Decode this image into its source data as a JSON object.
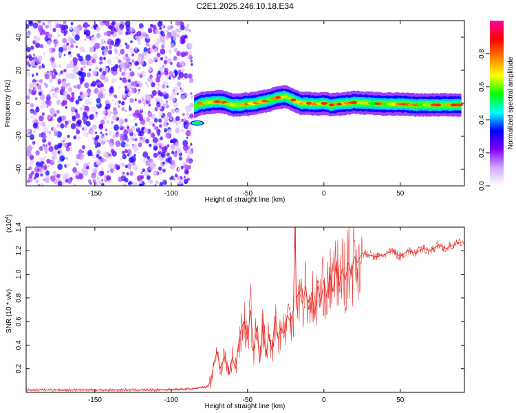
{
  "title": "C2E1.2025.246.10.18.E34",
  "chart_data": [
    {
      "type": "heatmap",
      "title": "C2E1.2025.246.10.18.E34",
      "xlabel": "Height of straight line (km)",
      "ylabel": "Frequency (Hz)",
      "xlim": [
        -195,
        92
      ],
      "ylim": [
        -50,
        50
      ],
      "xticks": [
        -150,
        -100,
        -50,
        0,
        50
      ],
      "yticks": [
        -40,
        -20,
        0,
        20,
        40
      ],
      "colorbar": {
        "label": "Normalized spectral amplitude",
        "range": [
          0.0,
          1.0
        ],
        "ticks": [
          0.0,
          0.2,
          0.4,
          0.6,
          0.8
        ],
        "tick_labels": [
          "0.0",
          "0.2",
          "0.4",
          "0.6",
          "0.8"
        ],
        "colormap": [
          "#ffffff",
          "#cfa8ff",
          "#8000ff",
          "#0000ff",
          "#00ffff",
          "#00ff00",
          "#ffff00",
          "#ff8000",
          "#ff0000",
          "#ff00a0"
        ]
      },
      "noise_region_x": [
        -195,
        -86
      ],
      "signal_ridge": {
        "x": [
          -85,
          -80,
          -75,
          -70,
          -65,
          -60,
          -55,
          -50,
          -45,
          -40,
          -35,
          -30,
          -25,
          -20,
          -15,
          -10,
          -5,
          0,
          5,
          10,
          15,
          20,
          30,
          40,
          50,
          60,
          70,
          80,
          90
        ],
        "y": [
          -2,
          0,
          0.5,
          1,
          0.5,
          -1,
          -1,
          -0.5,
          0,
          1,
          2,
          3.5,
          4,
          2,
          0,
          0,
          -0.5,
          0,
          -1,
          -0.5,
          0,
          0.5,
          0,
          -0.5,
          -0.5,
          -1,
          -1,
          -1,
          -1
        ]
      },
      "hot_spots_x": [
        -70,
        -30,
        -20,
        -10,
        0,
        5,
        10,
        20,
        35,
        75,
        85
      ],
      "side_blob": {
        "x": -83,
        "y": -12
      }
    },
    {
      "type": "line",
      "xlabel": "Height of straight line (km)",
      "ylabel": "SNR (10 * v/v)",
      "exponent_label": "(x10",
      "exponent_sup": "4",
      "exponent_close": ")",
      "xlim": [
        -195,
        92
      ],
      "ylim": [
        0,
        1.4
      ],
      "xticks": [
        -150,
        -100,
        -50,
        0,
        50
      ],
      "yticks": [
        0.2,
        0.4,
        0.6,
        0.8,
        1.0,
        1.2,
        1.4
      ],
      "ytick_labels": [
        "0.2",
        "0.4",
        "0.6",
        "0.8",
        "1.0",
        "1.2",
        "1.4"
      ],
      "color": "#e8302a",
      "series": [
        {
          "name": "SNR",
          "x": [
            -195,
            -170,
            -140,
            -110,
            -85,
            -80,
            -76,
            -74,
            -72,
            -70,
            -68,
            -65,
            -62,
            -60,
            -58,
            -56,
            -54,
            -52,
            -50,
            -48,
            -46,
            -44,
            -42,
            -40,
            -38,
            -36,
            -34,
            -32,
            -30,
            -28,
            -26,
            -24,
            -22,
            -20,
            -19,
            -18,
            -16,
            -14,
            -12,
            -10,
            -8,
            -6,
            -4,
            -2,
            0,
            2,
            4,
            6,
            8,
            10,
            12,
            14,
            16,
            18,
            20,
            22,
            25,
            30,
            35,
            40,
            45,
            50,
            55,
            60,
            65,
            70,
            75,
            80,
            85,
            90
          ],
          "y": [
            0.02,
            0.02,
            0.02,
            0.02,
            0.03,
            0.04,
            0.05,
            0.1,
            0.25,
            0.35,
            0.2,
            0.3,
            0.15,
            0.3,
            0.2,
            0.4,
            0.55,
            0.6,
            0.45,
            0.7,
            0.35,
            0.55,
            0.25,
            0.6,
            0.3,
            0.5,
            0.35,
            0.65,
            0.45,
            0.55,
            0.5,
            0.65,
            0.6,
            0.7,
            1.4,
            0.8,
            0.85,
            0.75,
            0.9,
            0.7,
            0.85,
            0.65,
            0.9,
            0.75,
            0.95,
            0.8,
            1.0,
            0.85,
            1.1,
            0.9,
            1.05,
            0.95,
            1.1,
            1.0,
            1.15,
            1.1,
            1.18,
            1.16,
            1.15,
            1.17,
            1.2,
            1.15,
            1.2,
            1.18,
            1.22,
            1.2,
            1.25,
            1.22,
            1.25,
            1.27
          ]
        }
      ]
    }
  ]
}
